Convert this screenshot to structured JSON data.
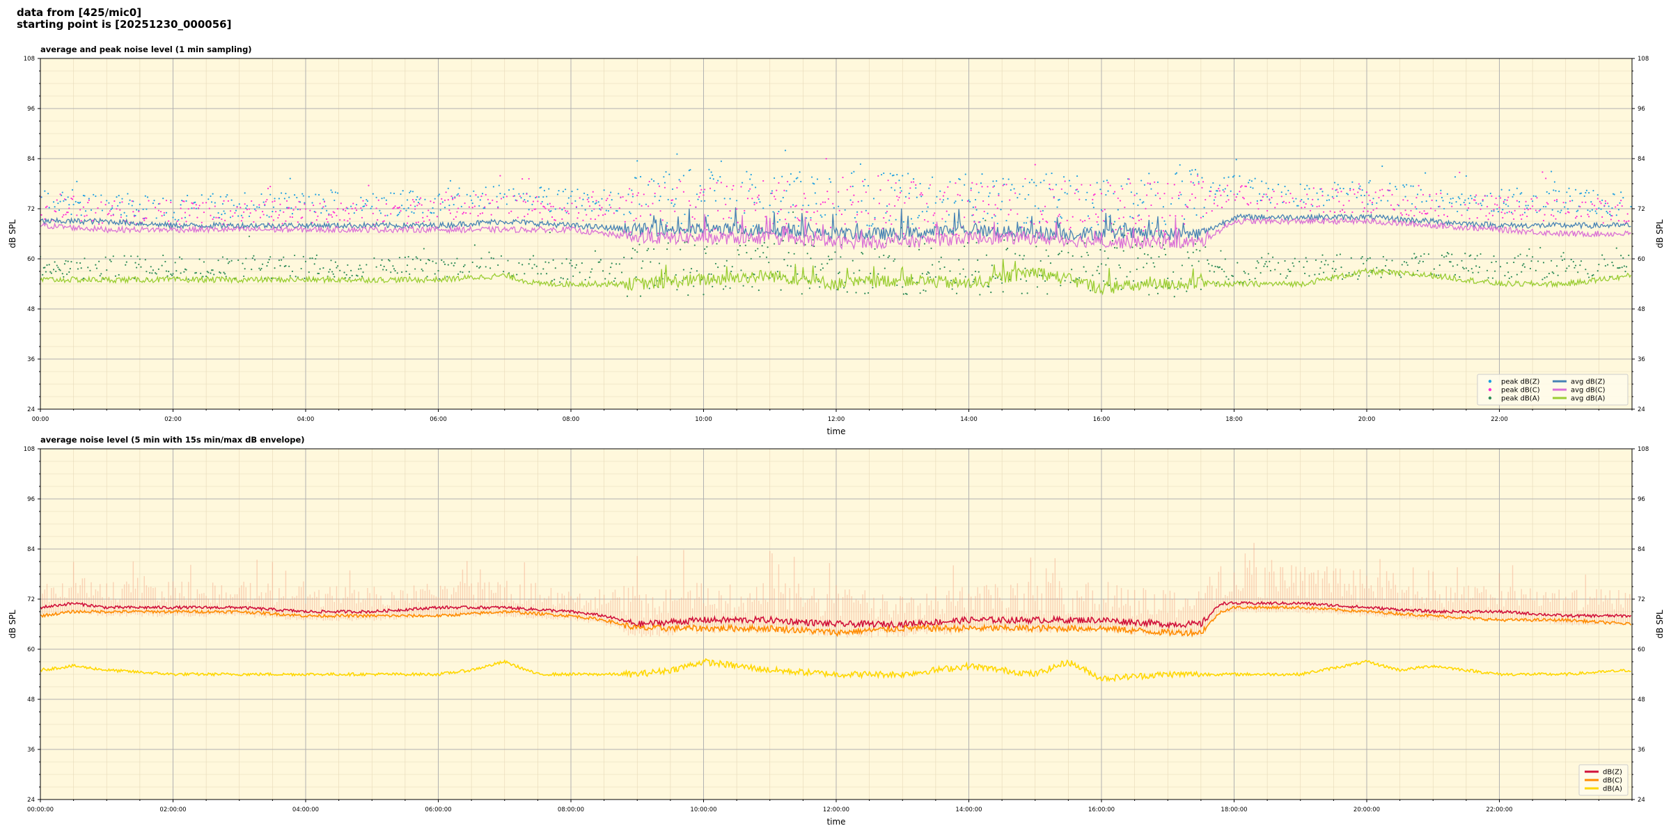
{
  "header": {
    "line1": "data from [425/mic0]",
    "line2": "starting point is [20251230_000056]"
  },
  "chart_data": [
    {
      "type": "line",
      "title": "average and peak noise level (1 min sampling)",
      "xlabel": "time",
      "ylabel": "dB SPL",
      "ylabel_right": "dB SPL",
      "ylim": [
        24,
        108
      ],
      "xlim": [
        0,
        24
      ],
      "grid": true,
      "legend_placement": "lower-right",
      "background": "#fff8dc",
      "yticks": [
        "24",
        "36",
        "48",
        "60",
        "72",
        "84",
        "96",
        "108"
      ],
      "xticks": [
        "00:00",
        "02:00",
        "04:00",
        "06:00",
        "08:00",
        "10:00",
        "12:00",
        "14:00",
        "16:00",
        "18:00",
        "20:00",
        "22:00"
      ],
      "legend": [
        {
          "label": "peak dB(Z)",
          "kind": "marker",
          "color": "#1f9fe0"
        },
        {
          "label": "peak dB(C)",
          "kind": "marker",
          "color": "#ff2dd4"
        },
        {
          "label": "peak dB(A)",
          "kind": "marker",
          "color": "#2e8b57"
        },
        {
          "label": "avg dB(Z)",
          "kind": "line",
          "color": "#4682b4"
        },
        {
          "label": "avg dB(C)",
          "kind": "line",
          "color": "#da70d6"
        },
        {
          "label": "avg dB(A)",
          "kind": "line",
          "color": "#9acd32"
        }
      ],
      "series": [
        {
          "name": "avg dB(Z)",
          "color": "#4682b4",
          "style": "line",
          "x": [
            0,
            1,
            2,
            3,
            4,
            5,
            6,
            7,
            8,
            9,
            10,
            11,
            12,
            13,
            14,
            15,
            16,
            17,
            17.5,
            18,
            19,
            20,
            21,
            22,
            23,
            24
          ],
          "values": [
            69,
            69,
            68,
            68,
            68,
            68,
            68,
            69,
            68,
            67,
            67,
            67,
            66,
            66,
            67,
            66,
            66,
            66,
            66,
            70,
            70,
            70,
            69,
            68,
            68,
            68
          ]
        },
        {
          "name": "avg dB(C)",
          "color": "#da70d6",
          "style": "line",
          "x": [
            0,
            1,
            2,
            3,
            4,
            5,
            6,
            7,
            8,
            9,
            10,
            11,
            12,
            13,
            14,
            15,
            16,
            17,
            17.5,
            18,
            19,
            20,
            21,
            22,
            23,
            24
          ],
          "values": [
            68,
            67,
            67,
            67,
            67,
            67,
            67,
            67,
            67,
            65,
            65,
            65,
            64,
            64,
            65,
            65,
            64,
            64,
            64,
            69,
            69,
            69,
            68,
            67,
            66,
            66
          ]
        },
        {
          "name": "avg dB(A)",
          "color": "#9acd32",
          "style": "line",
          "x": [
            0,
            1,
            2,
            3,
            4,
            5,
            6,
            7,
            7.5,
            8,
            9,
            10,
            11,
            12,
            13,
            14,
            15,
            16,
            17,
            18,
            19,
            20,
            21,
            22,
            23,
            24
          ],
          "values": [
            55,
            55,
            55,
            55,
            55,
            55,
            55,
            56,
            54,
            54,
            54,
            55,
            56,
            54,
            55,
            54,
            57,
            53,
            54,
            54,
            54,
            57,
            56,
            54,
            54,
            56
          ]
        },
        {
          "name": "peak dB(Z)",
          "color": "#1f9fe0",
          "style": "points",
          "x": [
            0,
            1,
            2,
            3,
            4,
            5,
            6,
            7,
            8,
            9,
            10,
            11,
            12,
            13,
            14,
            15,
            16,
            17,
            18,
            19,
            20,
            21,
            22,
            23,
            24
          ],
          "values": [
            74,
            73,
            72,
            73,
            73,
            73,
            74,
            75,
            74,
            74,
            75,
            74,
            75,
            74,
            74,
            74,
            74,
            74,
            77,
            75,
            76,
            74,
            74,
            74,
            73
          ]
        },
        {
          "name": "peak dB(C)",
          "color": "#ff2dd4",
          "style": "points",
          "x": [
            0,
            1,
            2,
            3,
            4,
            5,
            6,
            7,
            8,
            9,
            10,
            11,
            12,
            13,
            14,
            15,
            16,
            17,
            18,
            19,
            20,
            21,
            22,
            23,
            24
          ],
          "values": [
            72,
            71,
            71,
            71,
            71,
            71,
            72,
            73,
            72,
            72,
            73,
            72,
            73,
            72,
            72,
            72,
            72,
            72,
            75,
            74,
            74,
            73,
            72,
            72,
            71
          ]
        },
        {
          "name": "peak dB(A)",
          "color": "#2e8b57",
          "style": "points",
          "x": [
            0,
            1,
            2,
            3,
            4,
            5,
            6,
            7,
            8,
            9,
            10,
            11,
            12,
            13,
            14,
            15,
            16,
            17,
            18,
            19,
            20,
            21,
            22,
            23,
            24
          ],
          "values": [
            58,
            58,
            58,
            58,
            58,
            58,
            58,
            59,
            57,
            57,
            58,
            58,
            58,
            58,
            58,
            58,
            59,
            57,
            57,
            58,
            58,
            59,
            58,
            58,
            58
          ]
        }
      ]
    },
    {
      "type": "line",
      "title": "average noise level (5 min with 15s min/max dB envelope)",
      "xlabel": "time",
      "ylabel": "dB SPL",
      "ylabel_right": "dB SPL",
      "ylim": [
        24,
        108
      ],
      "xlim": [
        0,
        24
      ],
      "grid": true,
      "legend_placement": "lower-right",
      "background": "#fff8dc",
      "yticks": [
        "24",
        "36",
        "48",
        "60",
        "72",
        "84",
        "96",
        "108"
      ],
      "xticks": [
        "00:00:00",
        "02:00:00",
        "04:00:00",
        "06:00:00",
        "08:00:00",
        "10:00:00",
        "12:00:00",
        "14:00:00",
        "16:00:00",
        "18:00:00",
        "20:00:00",
        "22:00:00"
      ],
      "envelope": {
        "color": "#f4a582",
        "min_offset": -1.5,
        "max_offset": 6
      },
      "legend": [
        {
          "label": "dB(Z)",
          "kind": "line",
          "color": "#d0103a"
        },
        {
          "label": "dB(C)",
          "kind": "line",
          "color": "#ff8c00"
        },
        {
          "label": "dB(A)",
          "kind": "line",
          "color": "#ffd700"
        }
      ],
      "series": [
        {
          "name": "dB(Z)",
          "color": "#d0103a",
          "style": "line",
          "x": [
            0,
            0.5,
            1,
            2,
            3,
            4,
            5,
            6,
            7,
            8,
            8.5,
            9,
            10,
            11,
            12,
            13,
            14,
            15,
            16,
            17,
            17.5,
            17.8,
            18,
            19,
            20,
            21,
            22,
            23,
            24
          ],
          "values": [
            70,
            71,
            70,
            70,
            70,
            69,
            69,
            70,
            70,
            69,
            68,
            66,
            67,
            67,
            66,
            66,
            67,
            67,
            67,
            66,
            66,
            71,
            71,
            71,
            70,
            69,
            69,
            68,
            68
          ]
        },
        {
          "name": "dB(C)",
          "color": "#ff8c00",
          "style": "line",
          "x": [
            0,
            0.5,
            1,
            2,
            3,
            4,
            5,
            6,
            7,
            8,
            8.5,
            9,
            10,
            11,
            12,
            13,
            14,
            15,
            16,
            17,
            17.5,
            17.8,
            18,
            19,
            20,
            21,
            22,
            23,
            24
          ],
          "values": [
            68,
            69,
            69,
            69,
            69,
            68,
            68,
            68,
            69,
            68,
            67,
            65,
            65,
            65,
            64,
            65,
            65,
            65,
            65,
            64,
            64,
            69,
            70,
            70,
            69,
            68,
            67,
            67,
            66
          ]
        },
        {
          "name": "dB(A)",
          "color": "#ffd700",
          "style": "line",
          "x": [
            0,
            0.5,
            1,
            2,
            3,
            4,
            5,
            6,
            6.5,
            7,
            7.5,
            8,
            9,
            9.5,
            10,
            11,
            12,
            13,
            14,
            15,
            15.5,
            16,
            17,
            18,
            19,
            20,
            20.5,
            21,
            22,
            23,
            24
          ],
          "values": [
            55,
            56,
            55,
            54,
            54,
            54,
            54,
            54,
            55,
            57,
            54,
            54,
            54,
            55,
            57,
            55,
            54,
            54,
            56,
            54,
            57,
            53,
            54,
            54,
            54,
            57,
            55,
            56,
            54,
            54,
            55
          ]
        }
      ]
    }
  ]
}
